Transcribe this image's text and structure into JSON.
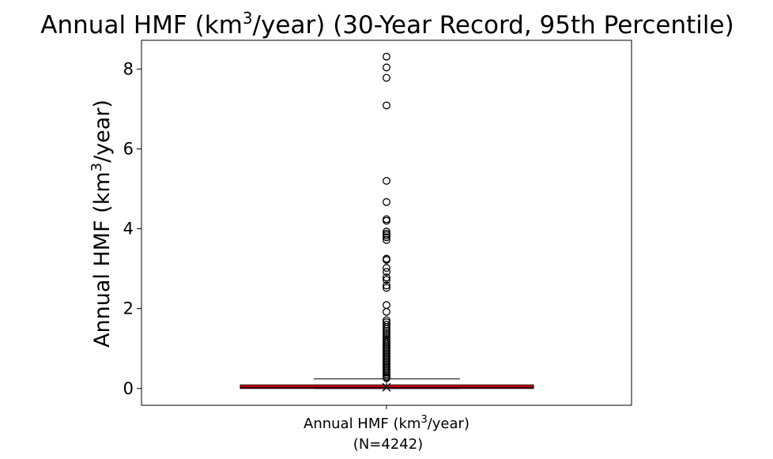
{
  "chart_data": {
    "type": "box",
    "title": "Annual HMF (km³/year) (30-Year Record, 95th Percentile)",
    "title_parts": [
      "Annual HMF (km",
      "3",
      "/year) (30-Year Record, 95th Percentile)"
    ],
    "ylabel": "Annual HMF (km³/year)",
    "ylabel_parts": [
      "Annual HMF (km",
      "3",
      "/year)"
    ],
    "category": "Annual HMF (km³/year)",
    "category_parts": [
      "Annual HMF (km",
      "3",
      "/year)"
    ],
    "n_label": "(N=4242)",
    "ylim": [
      -0.42,
      8.72
    ],
    "yticks": [
      0,
      2,
      4,
      6,
      8
    ],
    "grid": false,
    "box": {
      "whisker_low": 0.0,
      "q1": 0.0,
      "median": 0.03,
      "q3": 0.09,
      "whisker_high": 0.24,
      "mean": 0.03,
      "fill_color": "#ff0000"
    },
    "outliers": [
      8.31,
      8.04,
      7.78,
      7.09,
      5.2,
      4.67,
      4.24,
      4.2,
      3.93,
      3.88,
      3.84,
      3.79,
      3.72,
      3.25,
      3.22,
      3.02,
      2.92,
      2.78,
      2.72,
      2.58,
      2.52,
      2.09,
      1.92,
      1.71,
      1.66,
      1.6,
      1.54,
      1.49,
      1.44,
      1.39,
      1.34,
      1.29,
      1.24,
      1.2,
      1.16,
      1.12,
      1.08,
      1.04,
      1.0,
      0.96,
      0.92,
      0.88,
      0.84,
      0.8,
      0.76,
      0.72,
      0.68,
      0.64,
      0.6,
      0.56,
      0.52,
      0.48,
      0.44,
      0.4,
      0.36,
      0.32,
      0.28,
      0.26
    ],
    "colors": {
      "box_fill": "#ff0000",
      "lines": "#000000",
      "background": "#ffffff"
    }
  }
}
